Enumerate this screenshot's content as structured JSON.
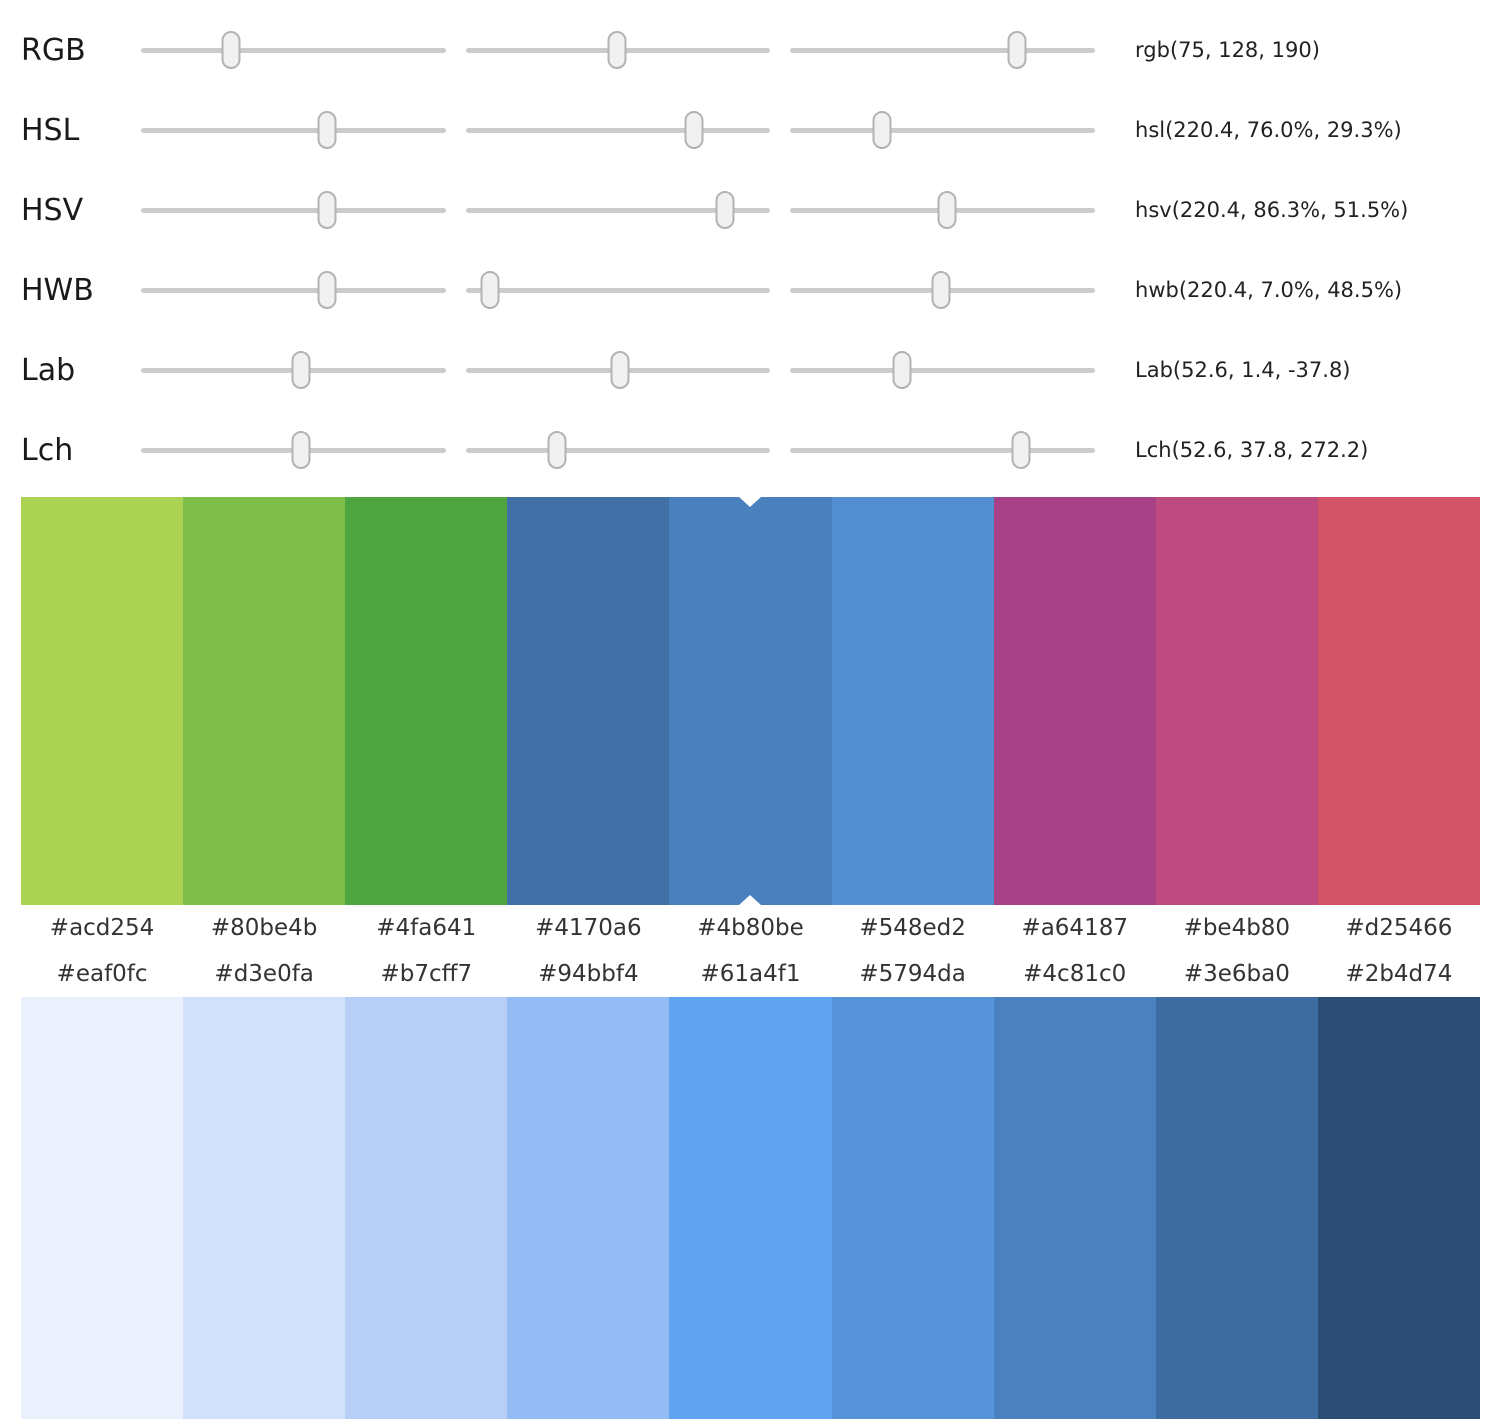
{
  "sliders": {
    "rows": [
      {
        "label": "RGB",
        "value": "rgb(75, 128, 190)",
        "thumbs": [
          29.4,
          49.8,
          74.5
        ]
      },
      {
        "label": "HSL",
        "value": "hsl(220.4, 76.0%, 29.3%)",
        "thumbs": [
          61.2,
          75.0,
          30.0
        ]
      },
      {
        "label": "HSV",
        "value": "hsv(220.4, 86.3%, 51.5%)",
        "thumbs": [
          61.2,
          85.0,
          51.5
        ]
      },
      {
        "label": "HWB",
        "value": "hwb(220.4, 7.0%, 48.5%)",
        "thumbs": [
          61.2,
          8.0,
          49.5
        ]
      },
      {
        "label": "Lab",
        "value": "Lab(52.6, 1.4, -37.8)",
        "thumbs": [
          52.6,
          50.5,
          36.5
        ]
      },
      {
        "label": "Lch",
        "value": "Lch(52.6, 37.8, 272.2)",
        "thumbs": [
          52.6,
          30.0,
          75.6
        ]
      }
    ]
  },
  "hue_palette": {
    "selected_index": 4,
    "swatches": [
      "#acd254",
      "#80be4b",
      "#4fa641",
      "#4170a6",
      "#4b80be",
      "#548ed2",
      "#a64187",
      "#be4b80",
      "#d25466"
    ]
  },
  "shade_palette": {
    "swatches": [
      "#eaf0fc",
      "#d3e0fa",
      "#b7cff7",
      "#94bbf4",
      "#61a4f1",
      "#5794da",
      "#4c81c0",
      "#3e6ba0",
      "#2b4d74"
    ]
  }
}
